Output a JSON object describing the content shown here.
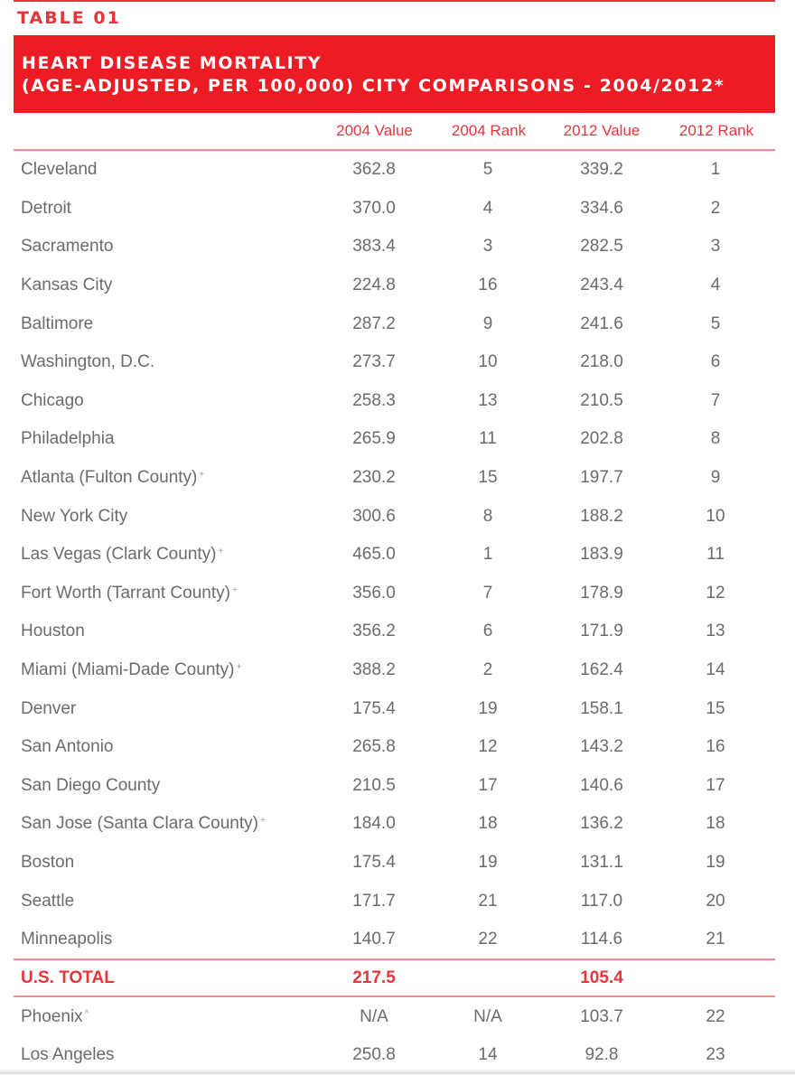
{
  "label": "TABLE 01",
  "title": {
    "line1": "HEART DISEASE MORTALITY",
    "line2": "(AGE-ADJUSTED, PER 100,000) CITY COMPARISONS - 2004/2012*"
  },
  "columns": [
    "",
    "2004 Value",
    "2004 Rank",
    "2012 Value",
    "2012 Rank"
  ],
  "rows": [
    {
      "city": "Cleveland",
      "mark": "",
      "v2004": "362.8",
      "r2004": "5",
      "v2012": "339.2",
      "r2012": "1"
    },
    {
      "city": "Detroit",
      "mark": "",
      "v2004": "370.0",
      "r2004": "4",
      "v2012": "334.6",
      "r2012": "2"
    },
    {
      "city": "Sacramento",
      "mark": "",
      "v2004": "383.4",
      "r2004": "3",
      "v2012": "282.5",
      "r2012": "3"
    },
    {
      "city": "Kansas City",
      "mark": "",
      "v2004": "224.8",
      "r2004": "16",
      "v2012": "243.4",
      "r2012": "4"
    },
    {
      "city": "Baltimore",
      "mark": "",
      "v2004": "287.2",
      "r2004": "9",
      "v2012": "241.6",
      "r2012": "5"
    },
    {
      "city": "Washington, D.C.",
      "mark": "",
      "v2004": "273.7",
      "r2004": "10",
      "v2012": "218.0",
      "r2012": "6"
    },
    {
      "city": "Chicago",
      "mark": "",
      "v2004": "258.3",
      "r2004": "13",
      "v2012": "210.5",
      "r2012": "7"
    },
    {
      "city": "Philadelphia",
      "mark": "",
      "v2004": "265.9",
      "r2004": "11",
      "v2012": "202.8",
      "r2012": "8"
    },
    {
      "city": "Atlanta (Fulton County)",
      "mark": "+",
      "v2004": "230.2",
      "r2004": "15",
      "v2012": "197.7",
      "r2012": "9"
    },
    {
      "city": "New York City",
      "mark": "",
      "v2004": "300.6",
      "r2004": "8",
      "v2012": "188.2",
      "r2012": "10"
    },
    {
      "city": "Las Vegas (Clark County)",
      "mark": "+",
      "v2004": "465.0",
      "r2004": "1",
      "v2012": "183.9",
      "r2012": "11"
    },
    {
      "city": "Fort Worth (Tarrant County)",
      "mark": "+",
      "v2004": "356.0",
      "r2004": "7",
      "v2012": "178.9",
      "r2012": "12"
    },
    {
      "city": "Houston",
      "mark": "",
      "v2004": "356.2",
      "r2004": "6",
      "v2012": "171.9",
      "r2012": "13"
    },
    {
      "city": "Miami (Miami-Dade County)",
      "mark": "+",
      "v2004": "388.2",
      "r2004": "2",
      "v2012": "162.4",
      "r2012": "14"
    },
    {
      "city": "Denver",
      "mark": "",
      "v2004": "175.4",
      "r2004": "19",
      "v2012": "158.1",
      "r2012": "15"
    },
    {
      "city": "San Antonio",
      "mark": "",
      "v2004": "265.8",
      "r2004": "12",
      "v2012": "143.2",
      "r2012": "16"
    },
    {
      "city": "San Diego County",
      "mark": "",
      "v2004": "210.5",
      "r2004": "17",
      "v2012": "140.6",
      "r2012": "17"
    },
    {
      "city": "San Jose (Santa Clara County)",
      "mark": "+",
      "v2004": "184.0",
      "r2004": "18",
      "v2012": "136.2",
      "r2012": "18"
    },
    {
      "city": "Boston",
      "mark": "",
      "v2004": "175.4",
      "r2004": "19",
      "v2012": "131.1",
      "r2012": "19"
    },
    {
      "city": "Seattle",
      "mark": "",
      "v2004": "171.7",
      "r2004": "21",
      "v2012": "117.0",
      "r2012": "20"
    },
    {
      "city": "Minneapolis",
      "mark": "",
      "v2004": "140.7",
      "r2004": "22",
      "v2012": "114.6",
      "r2012": "21"
    }
  ],
  "total": {
    "city": "U.S. TOTAL",
    "v2004": "217.5",
    "r2004": "",
    "v2012": "105.4",
    "r2012": ""
  },
  "after_rows": [
    {
      "city": "Phoenix",
      "mark": "^",
      "v2004": "N/A",
      "r2004": "N/A",
      "v2012": "103.7",
      "r2012": "22"
    },
    {
      "city": "Los Angeles",
      "mark": "",
      "v2004": "250.8",
      "r2004": "14",
      "v2012": "92.8",
      "r2012": "23"
    }
  ],
  "colors": {
    "accent": "#ec1c24",
    "text": "#6b6b6b"
  }
}
